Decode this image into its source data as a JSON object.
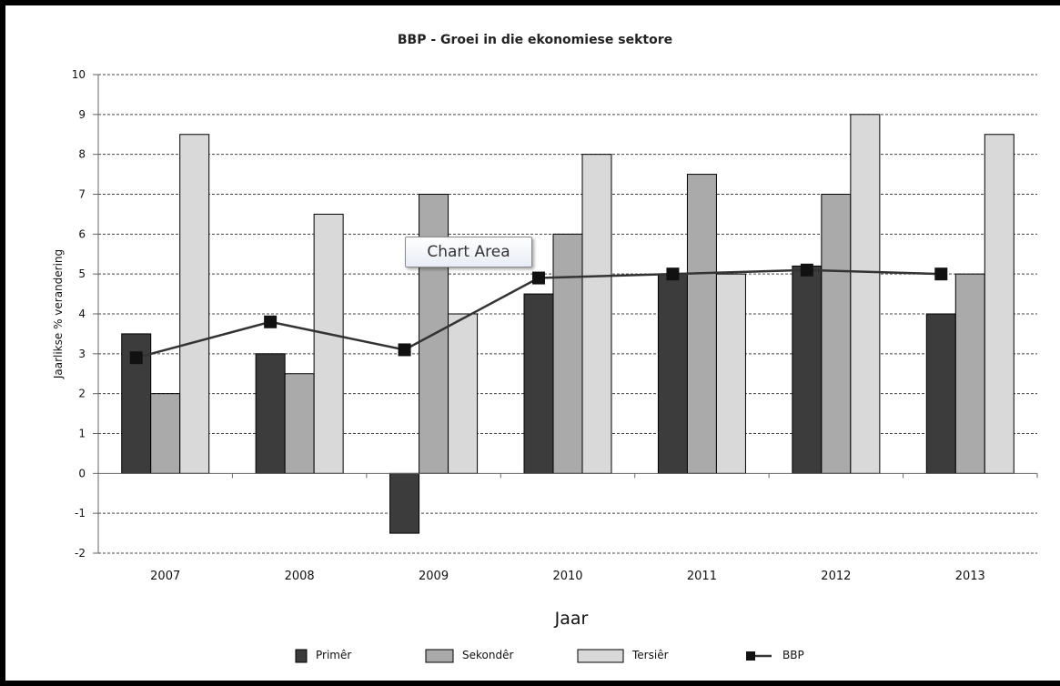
{
  "chart_data": {
    "type": "bar",
    "title": "BBP - Groei in die ekonomiese sektore",
    "xlabel": "Jaar",
    "ylabel": "Jaarlikse % verandering",
    "ylim": [
      -2,
      10
    ],
    "yticks": [
      "-2",
      "-1",
      "0",
      "1",
      "2",
      "3",
      "4",
      "5",
      "6",
      "7",
      "8",
      "9",
      "10"
    ],
    "grid": true,
    "legend_position": "bottom",
    "categories": [
      "2007",
      "2008",
      "2009",
      "2010",
      "2011",
      "2012",
      "2013"
    ],
    "series": [
      {
        "name": "Primêr",
        "type": "bar",
        "color": "#3c3c3c",
        "values": [
          3.5,
          3.0,
          -1.5,
          4.5,
          5.0,
          5.2,
          4.0
        ]
      },
      {
        "name": "Sekondêr",
        "type": "bar",
        "color": "#aaaaaa",
        "values": [
          2.0,
          2.5,
          7.0,
          6.0,
          7.5,
          7.0,
          5.0
        ]
      },
      {
        "name": "Tersiêr",
        "type": "bar",
        "color": "#d9d9d9",
        "values": [
          8.5,
          6.5,
          4.0,
          8.0,
          5.0,
          9.0,
          8.5
        ]
      },
      {
        "name": "BBP",
        "type": "line",
        "color": "#333333",
        "marker_color": "#111111",
        "values": [
          2.9,
          3.8,
          3.1,
          4.9,
          5.0,
          5.1,
          5.0
        ]
      }
    ]
  },
  "tooltip": "Chart Area"
}
